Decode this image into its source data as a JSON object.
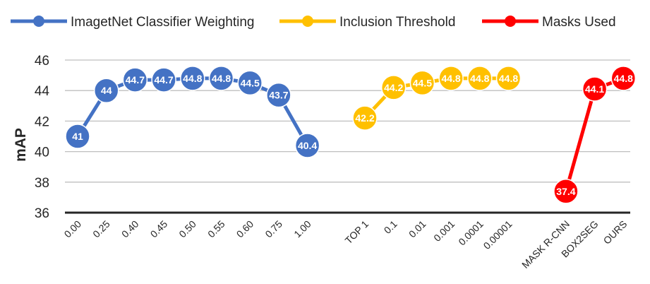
{
  "chart_data": {
    "type": "line",
    "title": "",
    "xlabel": "",
    "ylabel": "mAP",
    "ylim": [
      36,
      46
    ],
    "yticks": [
      "36",
      "38",
      "40",
      "42",
      "44",
      "46"
    ],
    "grid": true,
    "legend_position": "top",
    "series": [
      {
        "name": "ImagetNet Classifier Weighting",
        "color": "#4472C4",
        "categories": [
          "0.00",
          "0.25",
          "0.40",
          "0.45",
          "0.50",
          "0.55",
          "0.60",
          "0.75",
          "1.00"
        ],
        "values": [
          41,
          44,
          44.7,
          44.7,
          44.8,
          44.8,
          44.5,
          43.7,
          40.4
        ],
        "labels": [
          "41",
          "44",
          "44.7",
          "44.7",
          "44.8",
          "44.8",
          "44.5",
          "43.7",
          "40.4"
        ]
      },
      {
        "name": "Inclusion Threshold",
        "color": "#FFC000",
        "categories": [
          "TOP 1",
          "0.1",
          "0.01",
          "0.001",
          "0.0001",
          "0.00001"
        ],
        "values": [
          42.2,
          44.2,
          44.5,
          44.8,
          44.8,
          44.8
        ],
        "labels": [
          "42.2",
          "44.2",
          "44.5",
          "44.8",
          "44.8",
          "44.8"
        ]
      },
      {
        "name": "Masks Used",
        "color": "#FF0000",
        "categories": [
          "MASK R-CNN",
          "BOX2SEG",
          "OURS"
        ],
        "values": [
          37.4,
          44.1,
          44.8
        ],
        "labels": [
          "37.4",
          "44.1",
          "44.8"
        ]
      }
    ]
  }
}
